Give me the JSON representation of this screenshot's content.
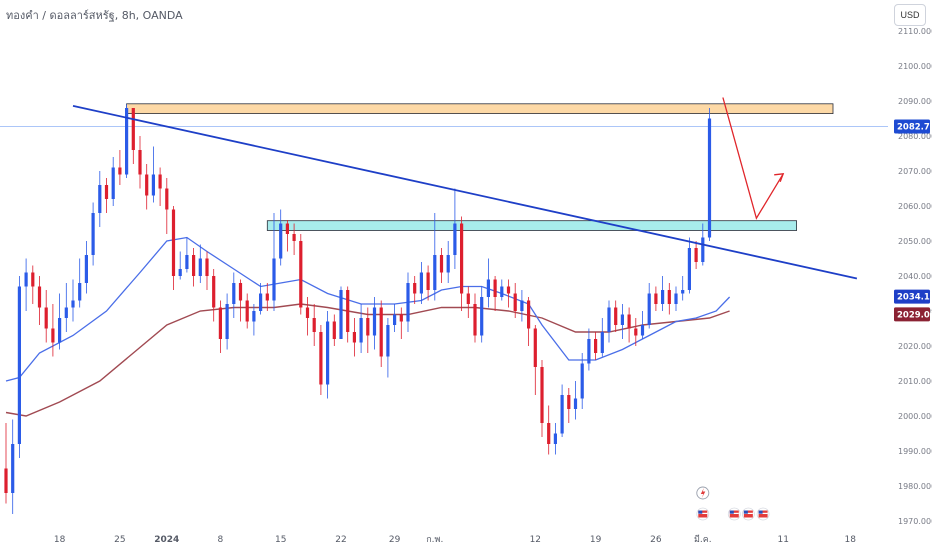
{
  "header": {
    "symbol_title": "ทองคำ / ดอลลาร์สหรัฐ, 8h, OANDA",
    "currency": "USD"
  },
  "chart_data": {
    "type": "candlestick",
    "symbol": "XAUUSD",
    "timeframe": "8h",
    "y_range": [
      1965,
      2115
    ],
    "y_ticks": [
      1970,
      1980,
      1990,
      2000,
      2010,
      2020,
      2030,
      2040,
      2050,
      2060,
      2070,
      2080,
      2090,
      2100,
      2110
    ],
    "y_tick_labels": [
      "1970.000",
      "1980.000",
      "1990.000",
      "2000.000",
      "2010.000",
      "2020.000",
      "2030.000",
      "2040.000",
      "2050.000",
      "2060.000",
      "2070.000",
      "2080.000",
      "2090.000",
      "2100.000",
      "2110.000"
    ],
    "x_labels": [
      {
        "label": "18",
        "bar": 8
      },
      {
        "label": "25",
        "bar": 17
      },
      {
        "label": "2024",
        "bar": 24,
        "bold": true
      },
      {
        "label": "8",
        "bar": 32
      },
      {
        "label": "15",
        "bar": 41
      },
      {
        "label": "22",
        "bar": 50
      },
      {
        "label": "29",
        "bar": 58
      },
      {
        "label": "ก.พ.",
        "bar": 64
      },
      {
        "label": "12",
        "bar": 79
      },
      {
        "label": "19",
        "bar": 88
      },
      {
        "label": "26",
        "bar": 97
      },
      {
        "label": "มี.ค.",
        "bar": 104
      },
      {
        "label": "11",
        "bar": 116
      },
      {
        "label": "18",
        "bar": 126
      }
    ],
    "candles": [
      [
        1985,
        1978,
        1998,
        1975
      ],
      [
        1978,
        1992,
        1999,
        1972
      ],
      [
        1992,
        2037,
        2040,
        1988
      ],
      [
        2037,
        2041,
        2045,
        2030
      ],
      [
        2041,
        2037,
        2043,
        2032
      ],
      [
        2037,
        2031,
        2040,
        2026
      ],
      [
        2031,
        2025,
        2036,
        2021
      ],
      [
        2025,
        2021,
        2032,
        2017
      ],
      [
        2021,
        2028,
        2035,
        2019
      ],
      [
        2028,
        2031,
        2038,
        2024
      ],
      [
        2031,
        2033,
        2039,
        2027
      ],
      [
        2033,
        2038,
        2045,
        2031
      ],
      [
        2038,
        2046,
        2050,
        2035
      ],
      [
        2046,
        2058,
        2061,
        2043
      ],
      [
        2058,
        2066,
        2070,
        2054
      ],
      [
        2066,
        2062,
        2068,
        2058
      ],
      [
        2062,
        2071,
        2074,
        2060
      ],
      [
        2071,
        2069,
        2076,
        2066
      ],
      [
        2069,
        2088,
        2089,
        2068
      ],
      [
        2088,
        2076,
        2083,
        2072
      ],
      [
        2076,
        2069,
        2080,
        2065
      ],
      [
        2069,
        2063,
        2072,
        2059
      ],
      [
        2063,
        2069,
        2077,
        2061
      ],
      [
        2069,
        2065,
        2071,
        2060
      ],
      [
        2065,
        2059,
        2068,
        2052
      ],
      [
        2059,
        2040,
        2060,
        2036
      ],
      [
        2040,
        2042,
        2047,
        2039
      ],
      [
        2042,
        2046,
        2051,
        2041
      ],
      [
        2046,
        2040,
        2048,
        2037
      ],
      [
        2040,
        2045,
        2049,
        2038
      ],
      [
        2045,
        2040,
        2047,
        2036
      ],
      [
        2040,
        2031,
        2042,
        2027
      ],
      [
        2031,
        2022,
        2033,
        2018
      ],
      [
        2022,
        2032,
        2035,
        2019
      ],
      [
        2032,
        2038,
        2041,
        2028
      ],
      [
        2038,
        2033,
        2039,
        2027
      ],
      [
        2033,
        2027,
        2035,
        2025
      ],
      [
        2027,
        2030,
        2032,
        2023
      ],
      [
        2030,
        2035,
        2038,
        2029
      ],
      [
        2035,
        2033,
        2038,
        2030
      ],
      [
        2033,
        2045,
        2058,
        2030
      ],
      [
        2045,
        2055,
        2059,
        2043
      ],
      [
        2055,
        2052,
        2056,
        2047
      ],
      [
        2052,
        2050,
        2055,
        2046
      ],
      [
        2050,
        2031,
        2052,
        2029
      ],
      [
        2031,
        2028,
        2034,
        2023
      ],
      [
        2028,
        2024,
        2032,
        2020
      ],
      [
        2024,
        2009,
        2026,
        2006
      ],
      [
        2009,
        2027,
        2030,
        2005
      ],
      [
        2027,
        2022,
        2029,
        2020
      ],
      [
        2022,
        2036,
        2037,
        2022
      ],
      [
        2036,
        2024,
        2037,
        2021
      ],
      [
        2024,
        2021,
        2028,
        2017
      ],
      [
        2021,
        2028,
        2032,
        2018
      ],
      [
        2028,
        2023,
        2031,
        2018
      ],
      [
        2023,
        2031,
        2034,
        2019
      ],
      [
        2031,
        2017,
        2033,
        2014
      ],
      [
        2017,
        2026,
        2028,
        2011
      ],
      [
        2026,
        2029,
        2032,
        2024
      ],
      [
        2029,
        2027,
        2031,
        2022
      ],
      [
        2027,
        2038,
        2041,
        2024
      ],
      [
        2038,
        2035,
        2040,
        2032
      ],
      [
        2035,
        2041,
        2044,
        2032
      ],
      [
        2041,
        2036,
        2043,
        2033
      ],
      [
        2036,
        2046,
        2058,
        2033
      ],
      [
        2046,
        2041,
        2048,
        2038
      ],
      [
        2041,
        2046,
        2050,
        2038
      ],
      [
        2046,
        2055,
        2065,
        2042
      ],
      [
        2055,
        2035,
        2057,
        2030
      ],
      [
        2035,
        2032,
        2037,
        2028
      ],
      [
        2032,
        2023,
        2035,
        2021
      ],
      [
        2023,
        2034,
        2037,
        2021
      ],
      [
        2034,
        2039,
        2045,
        2031
      ],
      [
        2039,
        2034,
        2040,
        2030
      ],
      [
        2034,
        2037,
        2039,
        2033
      ],
      [
        2037,
        2035,
        2039,
        2031
      ],
      [
        2035,
        2030,
        2038,
        2028
      ],
      [
        2030,
        2033,
        2036,
        2027
      ],
      [
        2033,
        2025,
        2034,
        2020
      ],
      [
        2025,
        2014,
        2026,
        2006
      ],
      [
        2014,
        1998,
        2016,
        1994
      ],
      [
        1998,
        1992,
        2003,
        1989
      ],
      [
        1992,
        1995,
        1998,
        1989
      ],
      [
        1995,
        2006,
        2009,
        1994
      ],
      [
        2006,
        2002,
        2008,
        1998
      ],
      [
        2002,
        2005,
        2010,
        1999
      ],
      [
        2005,
        2015,
        2018,
        2002
      ],
      [
        2015,
        2022,
        2025,
        2013
      ],
      [
        2022,
        2018,
        2024,
        2016
      ],
      [
        2018,
        2024,
        2028,
        2017
      ],
      [
        2024,
        2031,
        2033,
        2021
      ],
      [
        2031,
        2026,
        2033,
        2024
      ],
      [
        2026,
        2029,
        2032,
        2022
      ],
      [
        2029,
        2025,
        2031,
        2021
      ],
      [
        2025,
        2023,
        2028,
        2020
      ],
      [
        2023,
        2026,
        2030,
        2022
      ],
      [
        2026,
        2035,
        2038,
        2025
      ],
      [
        2035,
        2032,
        2037,
        2030
      ],
      [
        2032,
        2036,
        2040,
        2030
      ],
      [
        2036,
        2032,
        2038,
        2029
      ],
      [
        2032,
        2035,
        2037,
        2030
      ],
      [
        2035,
        2036,
        2040,
        2033
      ],
      [
        2036,
        2048,
        2051,
        2035
      ],
      [
        2048,
        2044,
        2050,
        2042
      ],
      [
        2044,
        2051,
        2055,
        2043
      ],
      [
        2051,
        2085,
        2088,
        2050
      ]
    ],
    "ma_fast": [
      [
        0,
        2010
      ],
      [
        2,
        2011
      ],
      [
        5,
        2018
      ],
      [
        10,
        2023
      ],
      [
        15,
        2030
      ],
      [
        20,
        2041
      ],
      [
        24,
        2050
      ],
      [
        27,
        2051
      ],
      [
        30,
        2047
      ],
      [
        34,
        2042
      ],
      [
        38,
        2037
      ],
      [
        41,
        2038
      ],
      [
        44,
        2039
      ],
      [
        48,
        2035
      ],
      [
        53,
        2032
      ],
      [
        58,
        2032
      ],
      [
        62,
        2033
      ],
      [
        65,
        2036
      ],
      [
        68,
        2037
      ],
      [
        71,
        2037
      ],
      [
        74,
        2035
      ],
      [
        78,
        2032
      ],
      [
        80,
        2026
      ],
      [
        84,
        2016
      ],
      [
        88,
        2016
      ],
      [
        92,
        2019
      ],
      [
        96,
        2023
      ],
      [
        100,
        2027
      ],
      [
        103,
        2028
      ],
      [
        106,
        2030
      ],
      [
        108,
        2034
      ]
    ],
    "ma_slow": [
      [
        0,
        2001
      ],
      [
        3,
        2000
      ],
      [
        8,
        2004
      ],
      [
        14,
        2010
      ],
      [
        19,
        2018
      ],
      [
        24,
        2026
      ],
      [
        29,
        2030
      ],
      [
        34,
        2031
      ],
      [
        40,
        2031
      ],
      [
        44,
        2032
      ],
      [
        48,
        2031
      ],
      [
        54,
        2029
      ],
      [
        60,
        2029
      ],
      [
        65,
        2031
      ],
      [
        70,
        2031
      ],
      [
        75,
        2030
      ],
      [
        80,
        2028
      ],
      [
        85,
        2024
      ],
      [
        90,
        2024
      ],
      [
        95,
        2026
      ],
      [
        100,
        2027
      ],
      [
        105,
        2028
      ],
      [
        108,
        2030
      ]
    ],
    "zones": [
      {
        "name": "resistance-zone",
        "from_bar": 18,
        "to_bar": 130,
        "top": 2089.2,
        "bottom": 2086.4,
        "fill": "#fdd9a6",
        "stroke": "#2a2e39"
      },
      {
        "name": "support-zone",
        "from_bar": 39,
        "to_bar": 118,
        "top": 2055.8,
        "bottom": 2053.0,
        "fill": "#a8ecec",
        "stroke": "#2a2e39"
      }
    ],
    "trendline": {
      "start": {
        "bar": 10,
        "price": 2088.6
      },
      "end": {
        "bar": 127,
        "price": 2039.3
      },
      "color": "#1e3fc7"
    },
    "projection_arrow": {
      "points": [
        [
          107,
          2091.0
        ],
        [
          112,
          2056.5
        ],
        [
          116,
          2069.2
        ]
      ],
      "color": "#e0262b"
    },
    "price_tags": [
      {
        "value": "2082.730",
        "price": 2082.73,
        "bg": "#1e4bd2"
      },
      {
        "value": "2034.100",
        "price": 2034.1,
        "bg": "#1e3fc7"
      },
      {
        "value": "2029.028",
        "price": 2029.03,
        "bg": "#8b2233"
      }
    ],
    "current_price_line": 2082.73,
    "colors": {
      "up": "#2b5be8",
      "down": "#dd1f2e",
      "ma_fast": "#4a6ee8",
      "ma_slow": "#a14a52",
      "price_line": "#5a8ef0"
    }
  }
}
